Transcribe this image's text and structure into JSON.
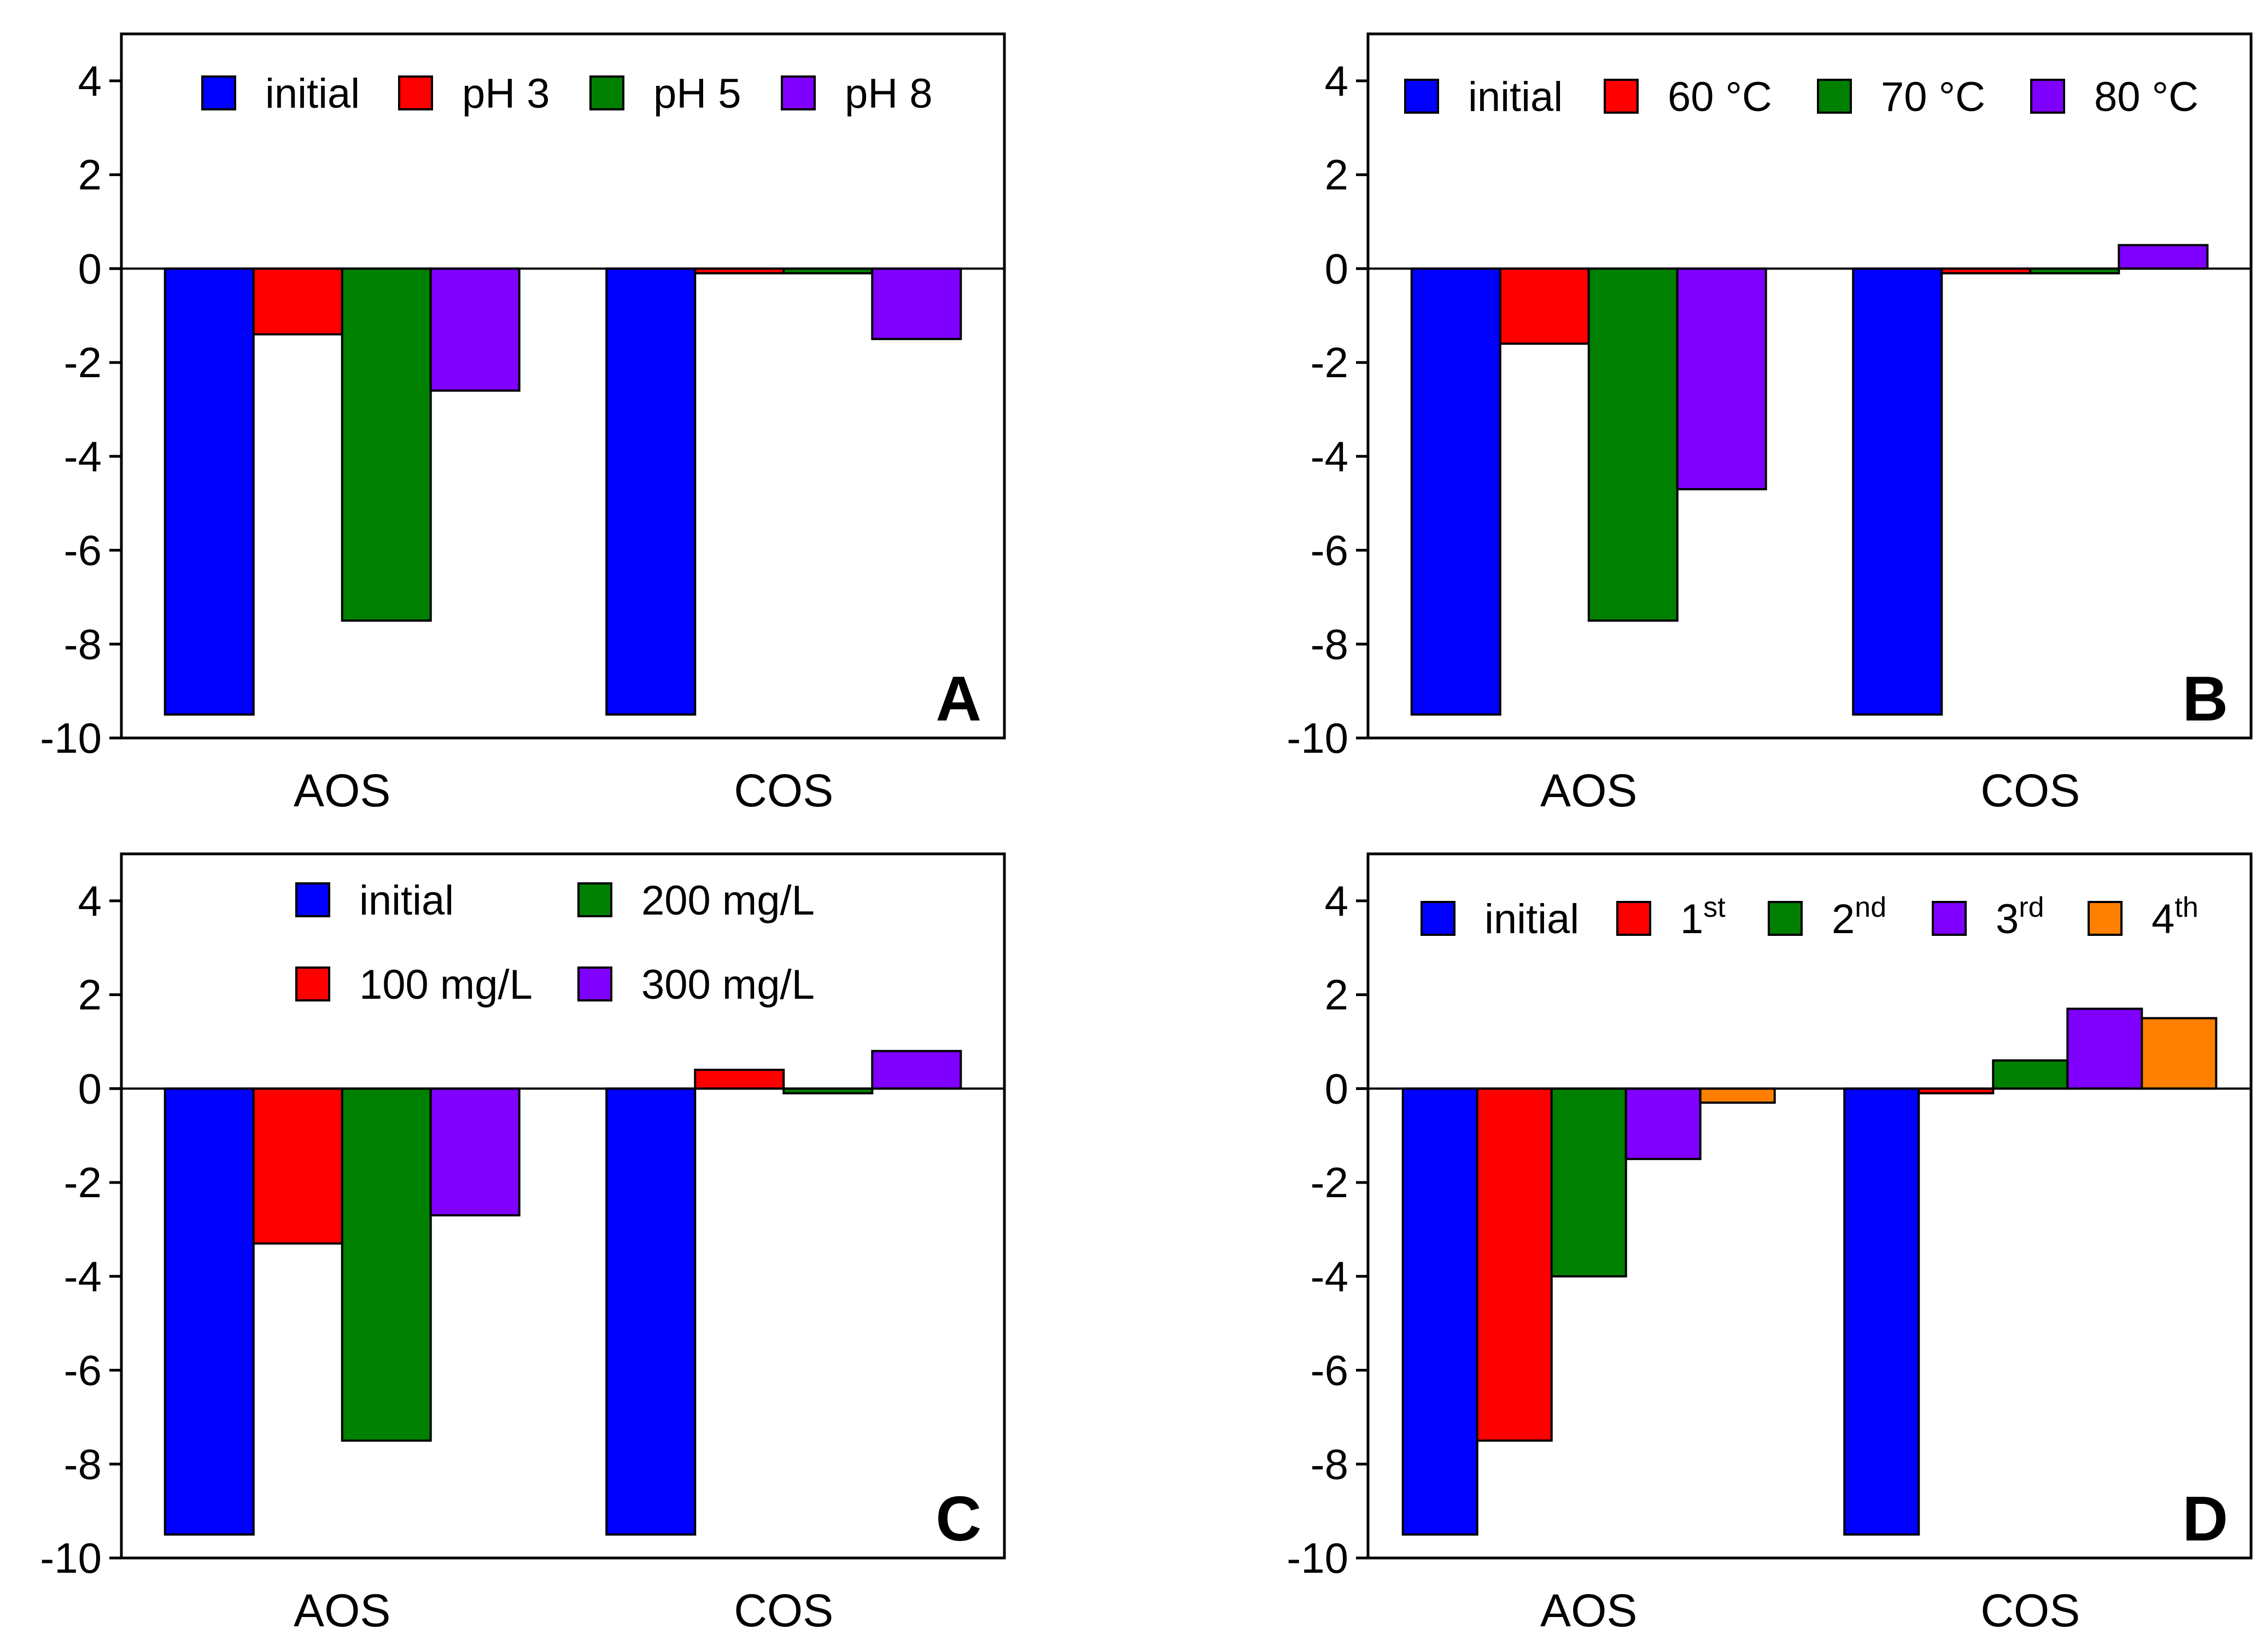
{
  "figure": {
    "title": "",
    "colors": {
      "initial": "#0000FF",
      "red": "#FF0000",
      "green": "#008000",
      "purple": "#8000FF",
      "orange": "#FF8000"
    }
  },
  "chart_data": [
    {
      "type": "bar",
      "panel_label": "A",
      "categories": [
        "AOS",
        "COS"
      ],
      "ylim": [
        -10,
        5
      ],
      "yticks": [
        4,
        2,
        0,
        -2,
        -4,
        -6,
        -8,
        -10
      ],
      "ytick_labels": [
        "4",
        "2",
        "0",
        "-2",
        "-4",
        "-6",
        "-8",
        "-10"
      ],
      "legend_placement": "top",
      "legend_rows": 1,
      "series": [
        {
          "name": "initial",
          "color": "#0000FF",
          "values": [
            -9.5,
            -9.5
          ]
        },
        {
          "name": "pH 3",
          "color": "#FF0000",
          "values": [
            -1.4,
            -0.1
          ]
        },
        {
          "name": "pH 5",
          "color": "#008000",
          "values": [
            -7.5,
            -0.1
          ]
        },
        {
          "name": "pH 8",
          "color": "#8000FF",
          "values": [
            -2.6,
            -1.5
          ]
        }
      ]
    },
    {
      "type": "bar",
      "panel_label": "B",
      "categories": [
        "AOS",
        "COS"
      ],
      "ylim": [
        -10,
        5
      ],
      "yticks": [
        4,
        2,
        0,
        -2,
        -4,
        -6,
        -8,
        -10
      ],
      "ytick_labels": [
        "4",
        "2",
        "0",
        "-2",
        "-4",
        "-6",
        "-8",
        "-10"
      ],
      "legend_placement": "top",
      "legend_rows": 1,
      "series": [
        {
          "name": "initial",
          "color": "#0000FF",
          "values": [
            -9.5,
            -9.5
          ]
        },
        {
          "name": "60 °C",
          "color": "#FF0000",
          "values": [
            -1.6,
            -0.1
          ]
        },
        {
          "name": "70 °C",
          "color": "#008000",
          "values": [
            -7.5,
            -0.1
          ]
        },
        {
          "name": "80 °C",
          "color": "#8000FF",
          "values": [
            -4.7,
            0.5
          ]
        }
      ]
    },
    {
      "type": "bar",
      "panel_label": "C",
      "categories": [
        "AOS",
        "COS"
      ],
      "ylim": [
        -10,
        5
      ],
      "yticks": [
        4,
        2,
        0,
        -2,
        -4,
        -6,
        -8,
        -10
      ],
      "ytick_labels": [
        "4",
        "2",
        "0",
        "-2",
        "-4",
        "-6",
        "-8",
        "-10"
      ],
      "legend_placement": "top",
      "legend_rows": 2,
      "series": [
        {
          "name": "initial",
          "color": "#0000FF",
          "values": [
            -9.5,
            -9.5
          ]
        },
        {
          "name": "100 mg/L",
          "color": "#FF0000",
          "values": [
            -3.3,
            0.4
          ]
        },
        {
          "name": "200 mg/L",
          "color": "#008000",
          "values": [
            -7.5,
            -0.1
          ]
        },
        {
          "name": "300 mg/L",
          "color": "#8000FF",
          "values": [
            -2.7,
            0.8
          ]
        }
      ]
    },
    {
      "type": "bar",
      "panel_label": "D",
      "categories": [
        "AOS",
        "COS"
      ],
      "ylim": [
        -10,
        5
      ],
      "yticks": [
        4,
        2,
        0,
        -2,
        -4,
        -6,
        -8,
        -10
      ],
      "ytick_labels": [
        "4",
        "2",
        "0",
        "-2",
        "-4",
        "-6",
        "-8",
        "-10"
      ],
      "legend_placement": "top",
      "legend_rows": 1,
      "series": [
        {
          "name": "initial",
          "sup": "",
          "color": "#0000FF",
          "values": [
            -9.5,
            -9.5
          ]
        },
        {
          "name": "1",
          "sup": "st",
          "color": "#FF0000",
          "values": [
            -7.5,
            -0.1
          ]
        },
        {
          "name": "2",
          "sup": "nd",
          "color": "#008000",
          "values": [
            -4.0,
            0.6
          ]
        },
        {
          "name": "3",
          "sup": "rd",
          "color": "#8000FF",
          "values": [
            -1.5,
            1.7
          ]
        },
        {
          "name": "4",
          "sup": "th",
          "color": "#FF8000",
          "values": [
            -0.3,
            1.5
          ]
        }
      ]
    }
  ]
}
